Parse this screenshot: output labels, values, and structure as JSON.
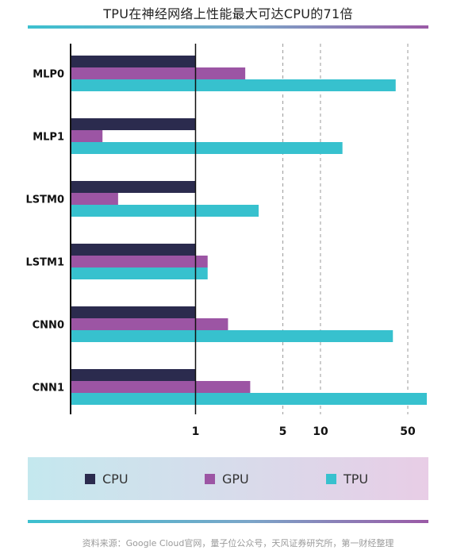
{
  "chart_data": {
    "type": "bar",
    "orientation": "horizontal",
    "title": "TPU在神经网络上性能最大可达CPU的71倍",
    "categories": [
      "MLP0",
      "MLP1",
      "LSTM0",
      "LSTM1",
      "CNN0",
      "CNN1"
    ],
    "series": [
      {
        "name": "CPU",
        "color": "#2b2b4e",
        "values": [
          1,
          1,
          1,
          1,
          1,
          1
        ]
      },
      {
        "name": "GPU",
        "color": "#9c55a4",
        "values": [
          2.5,
          0.18,
          0.24,
          1.25,
          1.82,
          2.74
        ]
      },
      {
        "name": "TPU",
        "color": "#37c1ce",
        "values": [
          40,
          15,
          3.2,
          1.25,
          38,
          71
        ]
      }
    ],
    "xscale": "log",
    "xlim": [
      0.1,
      71
    ],
    "xticks": [
      {
        "value": 1,
        "label": "1"
      },
      {
        "value": 5,
        "label": "5"
      },
      {
        "value": 10,
        "label": "10"
      },
      {
        "value": 50,
        "label": "50"
      }
    ],
    "grid": true,
    "legend_position": "bottom",
    "source": "资料来源：Google Cloud官网，量子位公众号，天风证券研究所，第一财经整理"
  }
}
